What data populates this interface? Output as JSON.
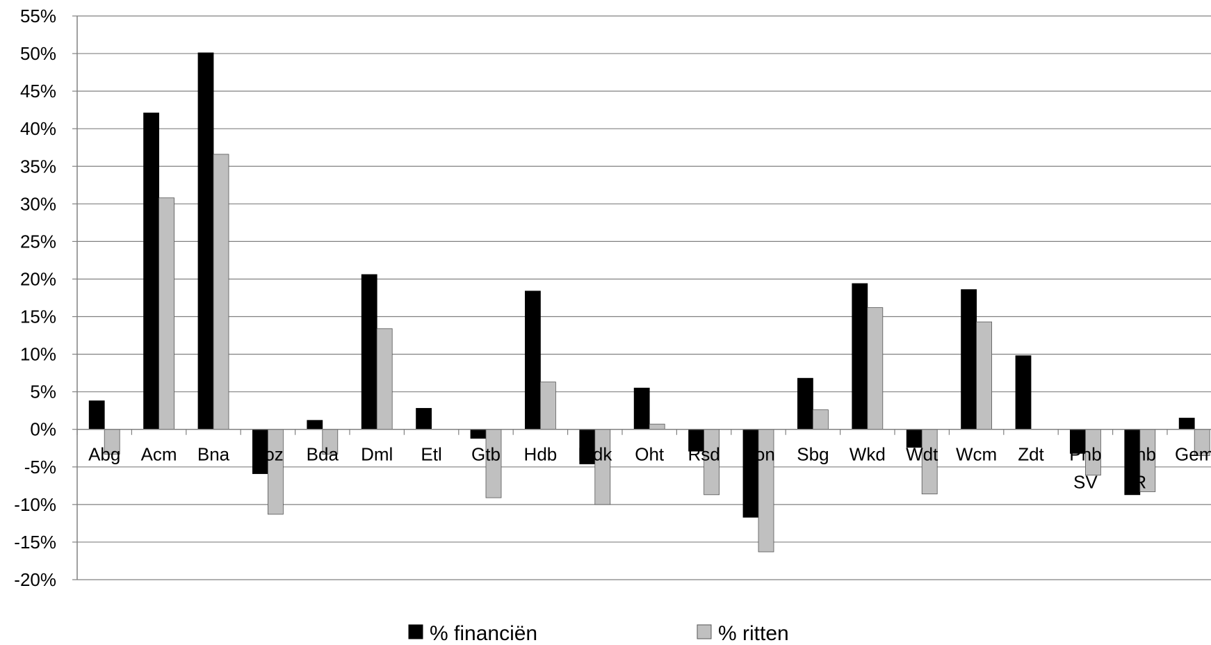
{
  "chart_data": {
    "type": "bar",
    "title": "",
    "xlabel": "",
    "ylabel": "",
    "ylim": [
      -20,
      55
    ],
    "yticks": [
      55,
      50,
      45,
      40,
      35,
      30,
      25,
      20,
      15,
      10,
      5,
      0,
      -5,
      -10,
      -15,
      -20
    ],
    "ytick_format": "percent",
    "grid": true,
    "legend_position": "bottom",
    "categories": [
      "Abg",
      "Acm",
      "Bna",
      "Boz",
      "Bda",
      "Dml",
      "Etl",
      "Gtb",
      "Hdb",
      "Mdk",
      "Oht",
      "Rsd",
      "Ron",
      "Sbg",
      "Wkd",
      "Wdt",
      "Wcm",
      "Zdt",
      "Pnb SV",
      "Pnb R",
      "Gem"
    ],
    "category_lines": [
      [
        "Abg"
      ],
      [
        "Acm"
      ],
      [
        "Bna"
      ],
      [
        "Boz"
      ],
      [
        "Bda"
      ],
      [
        "Dml"
      ],
      [
        "Etl"
      ],
      [
        "Gtb"
      ],
      [
        "Hdb"
      ],
      [
        "Mdk"
      ],
      [
        "Oht"
      ],
      [
        "Rsd"
      ],
      [
        "Ron"
      ],
      [
        "Sbg"
      ],
      [
        "Wkd"
      ],
      [
        "Wdt"
      ],
      [
        "Wcm"
      ],
      [
        "Zdt"
      ],
      [
        "Pnb",
        "SV"
      ],
      [
        "Pnb",
        "R"
      ],
      [
        "Gem"
      ]
    ],
    "series": [
      {
        "name": "% financiën",
        "color": "#000000",
        "values": [
          3.8,
          42.1,
          50.1,
          -5.9,
          1.2,
          20.6,
          2.8,
          -1.2,
          18.4,
          -4.6,
          5.5,
          -2.9,
          -11.7,
          6.8,
          19.4,
          -2.4,
          18.6,
          9.8,
          -3.2,
          -8.7,
          1.5
        ]
      },
      {
        "name": "% ritten",
        "color": "#c0c0c0",
        "values": [
          -3.3,
          30.8,
          36.6,
          -11.3,
          -3.3,
          13.4,
          0.0,
          -9.1,
          6.3,
          -10.0,
          0.7,
          -8.7,
          -16.3,
          2.6,
          16.2,
          -8.6,
          14.3,
          0.0,
          -6.1,
          -8.3,
          -3.5
        ]
      }
    ]
  }
}
